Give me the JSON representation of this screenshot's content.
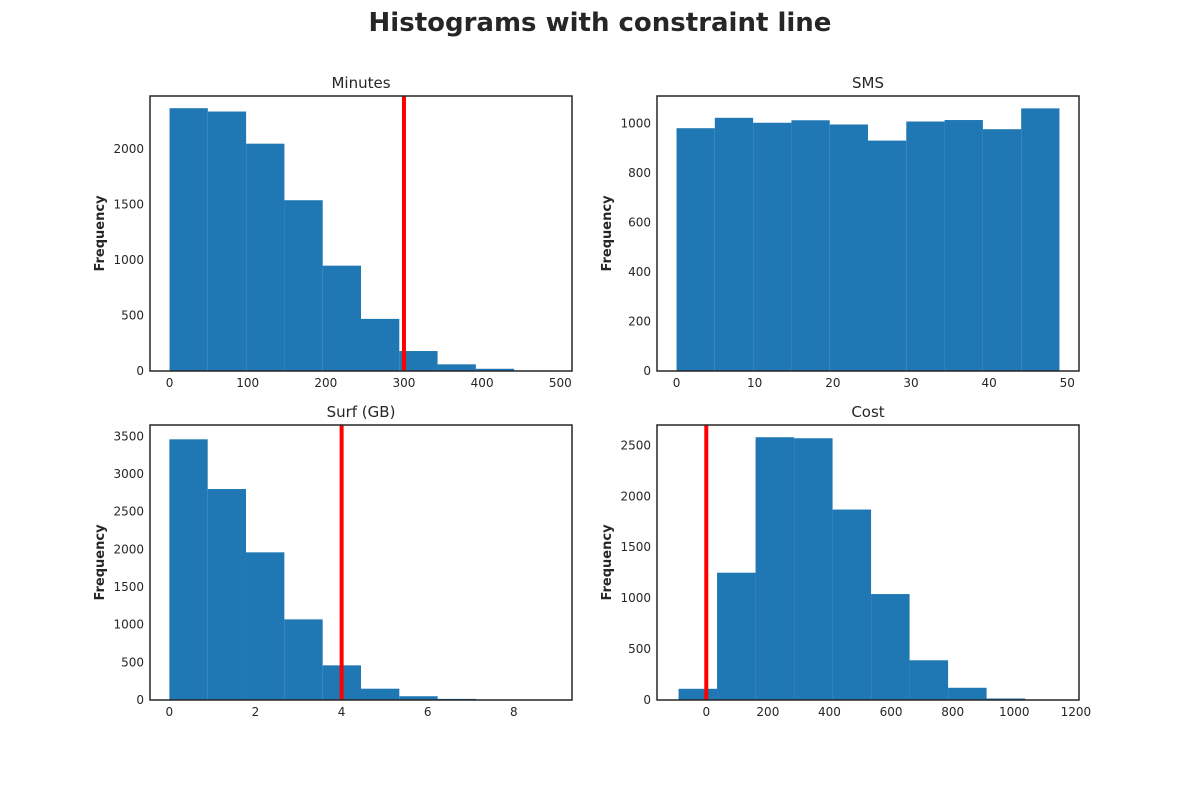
{
  "figure": {
    "title": "Histograms with constraint line"
  },
  "colors": {
    "bar": "#1f77b4",
    "constraint": "#ff0000",
    "frame": "#262626"
  },
  "chart_data": [
    {
      "type": "bar",
      "title": "Minutes",
      "xlabel": "",
      "ylabel": "Frequency",
      "xlim": [
        -25,
        515
      ],
      "ylim": [
        0,
        2480
      ],
      "bins": [
        {
          "x0": 0,
          "x1": 49,
          "value": 2370
        },
        {
          "x0": 49,
          "x1": 98,
          "value": 2340
        },
        {
          "x0": 98,
          "x1": 147,
          "value": 2050
        },
        {
          "x0": 147,
          "x1": 196,
          "value": 1540
        },
        {
          "x0": 196,
          "x1": 245,
          "value": 950
        },
        {
          "x0": 245,
          "x1": 294,
          "value": 470
        },
        {
          "x0": 294,
          "x1": 343,
          "value": 180
        },
        {
          "x0": 343,
          "x1": 392,
          "value": 60
        },
        {
          "x0": 392,
          "x1": 441,
          "value": 20
        },
        {
          "x0": 441,
          "x1": 490,
          "value": 5
        }
      ],
      "xticks": [
        0,
        100,
        200,
        300,
        400,
        500
      ],
      "yticks": [
        0,
        500,
        1000,
        1500,
        2000
      ],
      "constraint": 300,
      "grid": false
    },
    {
      "type": "bar",
      "title": "SMS",
      "xlabel": "",
      "ylabel": "Frequency",
      "xlim": [
        -2.5,
        51.5
      ],
      "ylim": [
        0,
        1110
      ],
      "bins": [
        {
          "x0": 0,
          "x1": 4.9,
          "value": 980
        },
        {
          "x0": 4.9,
          "x1": 9.8,
          "value": 1022
        },
        {
          "x0": 9.8,
          "x1": 14.7,
          "value": 1002
        },
        {
          "x0": 14.7,
          "x1": 19.6,
          "value": 1012
        },
        {
          "x0": 19.6,
          "x1": 24.5,
          "value": 995
        },
        {
          "x0": 24.5,
          "x1": 29.4,
          "value": 930
        },
        {
          "x0": 29.4,
          "x1": 34.3,
          "value": 1007
        },
        {
          "x0": 34.3,
          "x1": 39.2,
          "value": 1013
        },
        {
          "x0": 39.2,
          "x1": 44.1,
          "value": 976
        },
        {
          "x0": 44.1,
          "x1": 49,
          "value": 1060
        }
      ],
      "xticks": [
        0,
        10,
        20,
        30,
        40,
        50
      ],
      "yticks": [
        0,
        200,
        400,
        600,
        800,
        1000
      ],
      "grid": false
    },
    {
      "type": "bar",
      "title": "Surf (GB)",
      "xlabel": "",
      "ylabel": "Frequency",
      "xlim": [
        -0.45,
        9.35
      ],
      "ylim": [
        0,
        3650
      ],
      "bins": [
        {
          "x0": 0,
          "x1": 0.89,
          "value": 3460
        },
        {
          "x0": 0.89,
          "x1": 1.78,
          "value": 2800
        },
        {
          "x0": 1.78,
          "x1": 2.67,
          "value": 1960
        },
        {
          "x0": 2.67,
          "x1": 3.56,
          "value": 1070
        },
        {
          "x0": 3.56,
          "x1": 4.45,
          "value": 460
        },
        {
          "x0": 4.45,
          "x1": 5.34,
          "value": 150
        },
        {
          "x0": 5.34,
          "x1": 6.23,
          "value": 50
        },
        {
          "x0": 6.23,
          "x1": 7.12,
          "value": 15
        },
        {
          "x0": 7.12,
          "x1": 8.01,
          "value": 5
        },
        {
          "x0": 8.01,
          "x1": 8.9,
          "value": 2
        }
      ],
      "xticks": [
        0,
        2,
        4,
        6,
        8
      ],
      "yticks": [
        0,
        500,
        1000,
        1500,
        2000,
        2500,
        3000,
        3500
      ],
      "constraint": 4,
      "grid": false
    },
    {
      "type": "bar",
      "title": "Cost",
      "xlabel": "",
      "ylabel": "Frequency",
      "xlim": [
        -160,
        1210
      ],
      "ylim": [
        0,
        2700
      ],
      "bins": [
        {
          "x0": -90,
          "x1": 35,
          "value": 110
        },
        {
          "x0": 35,
          "x1": 160,
          "value": 1250
        },
        {
          "x0": 160,
          "x1": 285,
          "value": 2580
        },
        {
          "x0": 285,
          "x1": 410,
          "value": 2570
        },
        {
          "x0": 410,
          "x1": 535,
          "value": 1870
        },
        {
          "x0": 535,
          "x1": 660,
          "value": 1040
        },
        {
          "x0": 660,
          "x1": 785,
          "value": 390
        },
        {
          "x0": 785,
          "x1": 910,
          "value": 120
        },
        {
          "x0": 910,
          "x1": 1035,
          "value": 15
        },
        {
          "x0": 1035,
          "x1": 1160,
          "value": 5
        }
      ],
      "xticks": [
        0,
        200,
        400,
        600,
        800,
        1000,
        1200
      ],
      "yticks": [
        0,
        500,
        1000,
        1500,
        2000,
        2500
      ],
      "constraint": 0,
      "grid": false
    }
  ]
}
